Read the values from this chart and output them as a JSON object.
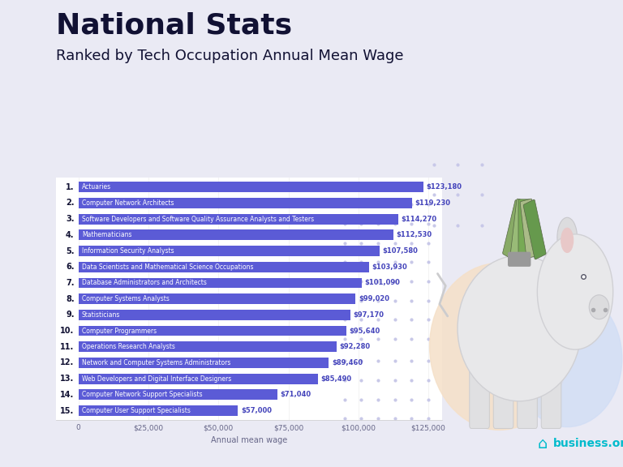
{
  "title_bold": "National Stats",
  "title_sub": "Ranked by Tech Occupation Annual Mean Wage",
  "xlabel": "Annual mean wage",
  "bg_outer": "#eaeaf4",
  "bg_inner": "#ffffff",
  "bar_color": "#5b5bd6",
  "text_color_label": "#ffffff",
  "text_color_value": "#4444bb",
  "rank_color": "#111133",
  "categories": [
    "Actuaries",
    "Computer Network Architects",
    "Software Developers and Software Quality Assurance Analysts and Testers",
    "Mathematicians",
    "Information Security Analysts",
    "Data Scientists and Mathematical Science Occupations",
    "Database Administrators and Architects",
    "Computer Systems Analysts",
    "Statisticians",
    "Computer Programmers",
    "Operations Research Analysts",
    "Network and Computer Systems Administrators",
    "Web Developers and Digital Interface Designers",
    "Computer Network Support Specialists",
    "Computer User Support Specialists"
  ],
  "values": [
    123180,
    119230,
    114270,
    112530,
    107580,
    103930,
    101090,
    99020,
    97170,
    95640,
    92280,
    89460,
    85490,
    71040,
    57000
  ],
  "xlim_left": -8000,
  "xlim_right": 130000,
  "xticks": [
    0,
    25000,
    50000,
    75000,
    100000,
    125000
  ],
  "xtick_labels": [
    "0",
    "$25,000",
    "$50,000",
    "$75,000",
    "$100,000",
    "$125,000"
  ],
  "dot_color": "#c8c8e8",
  "accent_peach": "#f5e0c8",
  "accent_blue_light": "#d0ddf5",
  "title_color": "#111133",
  "value_color": "#4444bb",
  "business_color": "#00bbcc"
}
